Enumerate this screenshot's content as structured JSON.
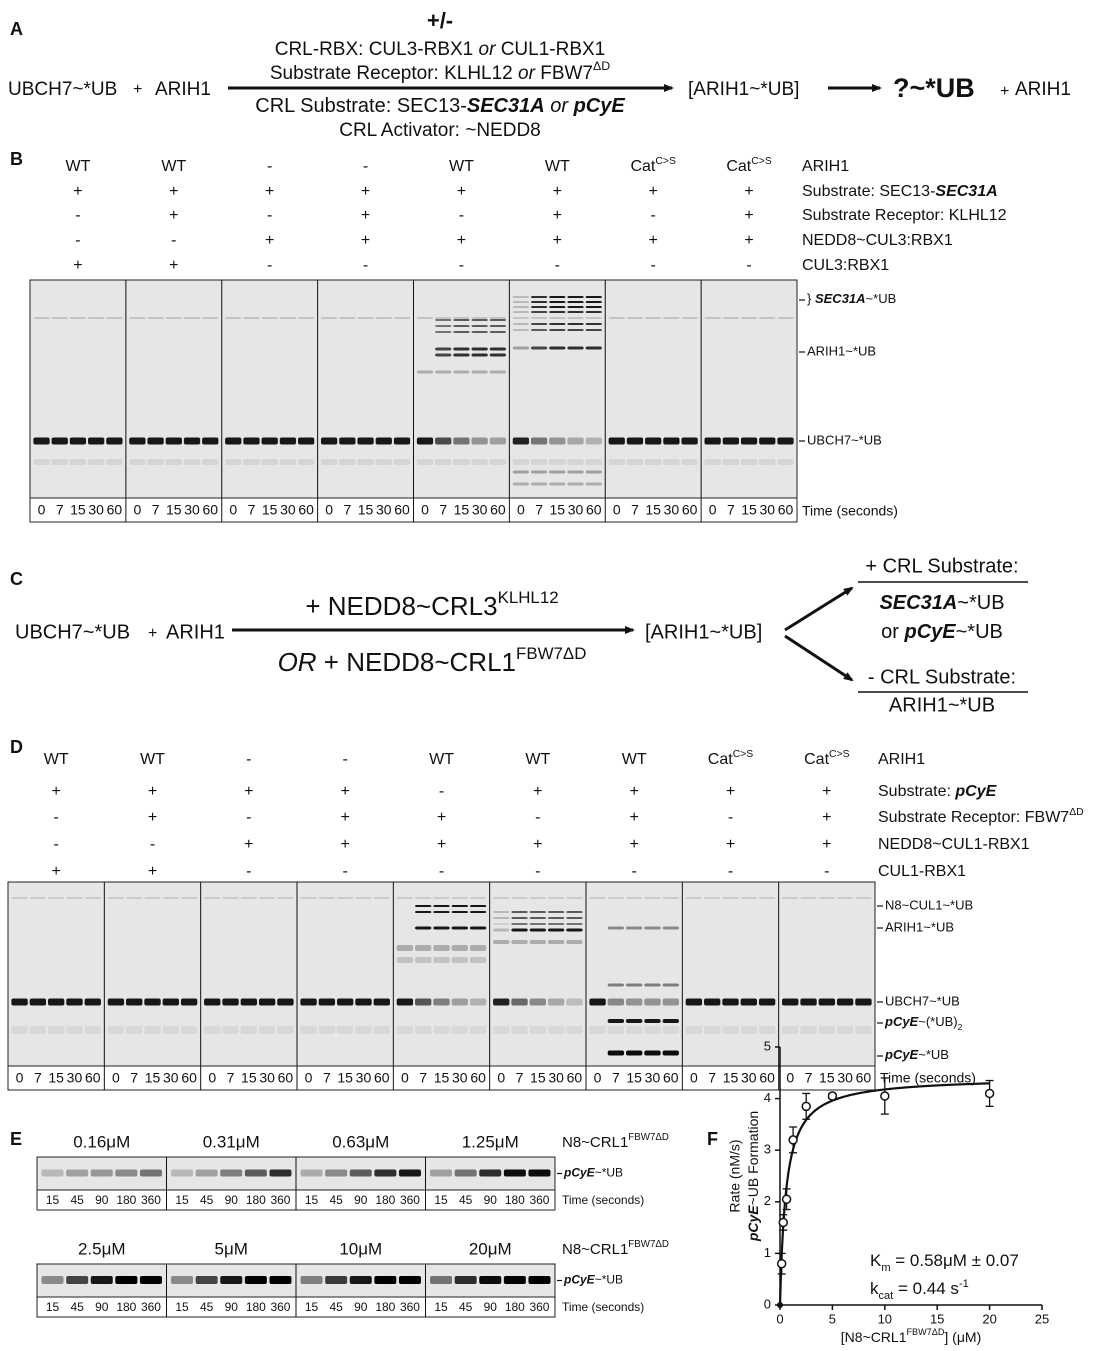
{
  "panel_a": {
    "letter": "A",
    "plus_minus": "+/-",
    "left": [
      "UBCH7~*UB",
      "+",
      "ARIH1"
    ],
    "conditions": [
      [
        "CRL-RBX: CUL3-RBX1 ",
        {
          "text": "or",
          "style": "italic"
        },
        " CUL1-RBX1"
      ],
      [
        "Substrate Receptor: KLHL12 ",
        {
          "text": "or",
          "style": "italic"
        },
        " FBW7",
        {
          "text": "ΔD",
          "style": "sup"
        }
      ],
      [
        "CRL Substrate: SEC13-",
        {
          "text": "SEC31A",
          "style": "bold-italic"
        },
        {
          "text": " or ",
          "style": "italic"
        },
        {
          "text": "pCyE",
          "style": "bold-italic"
        }
      ],
      "CRL Activator: ~NEDD8"
    ],
    "intermediate": "[ARIH1~*UB]",
    "product": "?~*UB",
    "right": [
      "+",
      "ARIH1"
    ]
  },
  "panel_b": {
    "letter": "B",
    "rows": [
      {
        "label": "ARIH1",
        "cells": [
          "WT",
          "WT",
          "-",
          "-",
          "WT",
          "WT",
          [
            "Cat",
            {
              "text": "C>S",
              "style": "sup"
            }
          ],
          [
            "Cat",
            {
              "text": "C>S",
              "style": "sup"
            }
          ]
        ]
      },
      {
        "label": [
          "Substrate: SEC13-",
          {
            "text": "SEC31A",
            "style": "bold-italic"
          }
        ],
        "cells": [
          "+",
          "+",
          "+",
          "+",
          "+",
          "+",
          "+",
          "+"
        ]
      },
      {
        "label": "Substrate Receptor: KLHL12",
        "cells": [
          "-",
          "+",
          "-",
          "+",
          "-",
          "+",
          "-",
          "+"
        ]
      },
      {
        "label": "NEDD8~CUL3:RBX1",
        "cells": [
          "-",
          "-",
          "+",
          "+",
          "+",
          "+",
          "+",
          "+"
        ]
      },
      {
        "label": "CUL3:RBX1",
        "cells": [
          "+",
          "+",
          "-",
          "-",
          "-",
          "-",
          "-",
          "-"
        ]
      }
    ],
    "times": [
      0,
      7,
      15,
      30,
      60
    ],
    "time_label": "Time (seconds)",
    "bands": [
      [
        "} ",
        {
          "text": "SEC31A",
          "style": "bold-italic"
        },
        "~*UB"
      ],
      "ARIH1~*UB",
      "UBCH7~*UB"
    ]
  },
  "panel_c": {
    "letter": "C",
    "left": [
      "UBCH7~*UB",
      "+",
      "ARIH1"
    ],
    "above": [
      "+ NEDD8~CRL3",
      {
        "text": "KLHL12",
        "style": "sup"
      }
    ],
    "below": [
      {
        "text": "OR",
        "style": "italic"
      },
      " + NEDD8~CRL1",
      {
        "text": "FBW7ΔD",
        "style": "sup"
      }
    ],
    "intermediate": "[ARIH1~*UB]",
    "upper_title": "+ CRL Substrate:",
    "upper_lines": [
      [
        {
          "text": "SEC31A",
          "style": "bold-italic"
        },
        "~*UB"
      ],
      [
        "or ",
        {
          "text": "pCyE",
          "style": "bold-italic"
        },
        "~*UB"
      ]
    ],
    "lower_title": "- CRL Substrate:",
    "lower_line": "ARIH1~*UB"
  },
  "panel_d": {
    "letter": "D",
    "rows": [
      {
        "label": "ARIH1",
        "cells": [
          "WT",
          "WT",
          "-",
          "-",
          "WT",
          "WT",
          "WT",
          [
            "Cat",
            {
              "text": "C>S",
              "style": "sup"
            }
          ],
          [
            "Cat",
            {
              "text": "C>S",
              "style": "sup"
            }
          ]
        ]
      },
      {
        "label": [
          "Substrate: ",
          {
            "text": "pCyE",
            "style": "bold-italic"
          }
        ],
        "cells": [
          "+",
          "+",
          "+",
          "+",
          "-",
          "+",
          "+",
          "+",
          "+"
        ]
      },
      {
        "label": [
          "Substrate Receptor: FBW7",
          {
            "text": "ΔD",
            "style": "sup"
          }
        ],
        "cells": [
          "-",
          "+",
          "-",
          "+",
          "+",
          "-",
          "+",
          "-",
          "+"
        ]
      },
      {
        "label": "NEDD8~CUL1-RBX1",
        "cells": [
          "-",
          "-",
          "+",
          "+",
          "+",
          "+",
          "+",
          "+",
          "+"
        ]
      },
      {
        "label": "CUL1-RBX1",
        "cells": [
          "+",
          "+",
          "-",
          "-",
          "-",
          "-",
          "-",
          "-",
          "-"
        ]
      }
    ],
    "times": [
      0,
      7,
      15,
      30,
      60
    ],
    "time_label": "Time (seconds)",
    "bands": [
      "N8~CUL1~*UB",
      "ARIH1~*UB",
      "UBCH7~*UB",
      [
        {
          "text": "pCyE",
          "style": "bold-italic"
        },
        "~(*UB)",
        {
          "text": "2",
          "style": "sub"
        }
      ],
      [
        {
          "text": "pCyE",
          "style": "bold-italic"
        },
        "~*UB"
      ]
    ]
  },
  "panel_e": {
    "letter": "E",
    "enzyme_label": [
      "N8~CRL1",
      {
        "text": "FBW7ΔD",
        "style": "sup"
      }
    ],
    "band_label": [
      {
        "text": "pCyE",
        "style": "bold-italic"
      },
      "~*UB"
    ],
    "times": [
      15,
      45,
      90,
      180,
      360
    ],
    "time_label": "Time (seconds)",
    "gels": [
      {
        "concentrations": [
          "0.16μM",
          "0.31μM",
          "0.63μM",
          "1.25μM"
        ]
      },
      {
        "concentrations": [
          "2.5μM",
          "5μM",
          "10μM",
          "20μM"
        ]
      }
    ]
  },
  "panel_f": {
    "letter": "F",
    "chart": {
      "type": "scatter",
      "y_label": [
        "Rate (nM/s)",
        [
          {
            "text": "pCyE",
            "style": "bold-italic"
          },
          "~UB Formation"
        ]
      ],
      "x_label": [
        "[N8~CRL1",
        {
          "text": "FBW7ΔD",
          "style": "sup"
        },
        "] (μM)"
      ],
      "x": [
        0.16,
        0.31,
        0.63,
        1.25,
        2.5,
        5,
        10,
        20
      ],
      "values": [
        0.8,
        1.6,
        2.05,
        3.2,
        3.85,
        4.05,
        4.05,
        4.1
      ],
      "errors": [
        0.2,
        0.15,
        0.2,
        0.25,
        0.25,
        0.05,
        0.35,
        0.25
      ],
      "fit": {
        "vmax": 4.42,
        "km": 0.58
      },
      "xlim": [
        0,
        25
      ],
      "xticks": [
        0,
        5,
        10,
        15,
        20,
        25
      ],
      "ylim": [
        0,
        5
      ],
      "yticks": [
        0,
        1,
        2,
        3,
        4,
        5
      ],
      "annotations": [
        [
          "K",
          {
            "text": "m",
            "style": "sub"
          },
          " = 0.58μM ± 0.07"
        ],
        [
          "k",
          {
            "text": "cat",
            "style": "sub"
          },
          " = 0.44 s",
          {
            "text": "-1",
            "style": "sup"
          }
        ]
      ]
    }
  }
}
